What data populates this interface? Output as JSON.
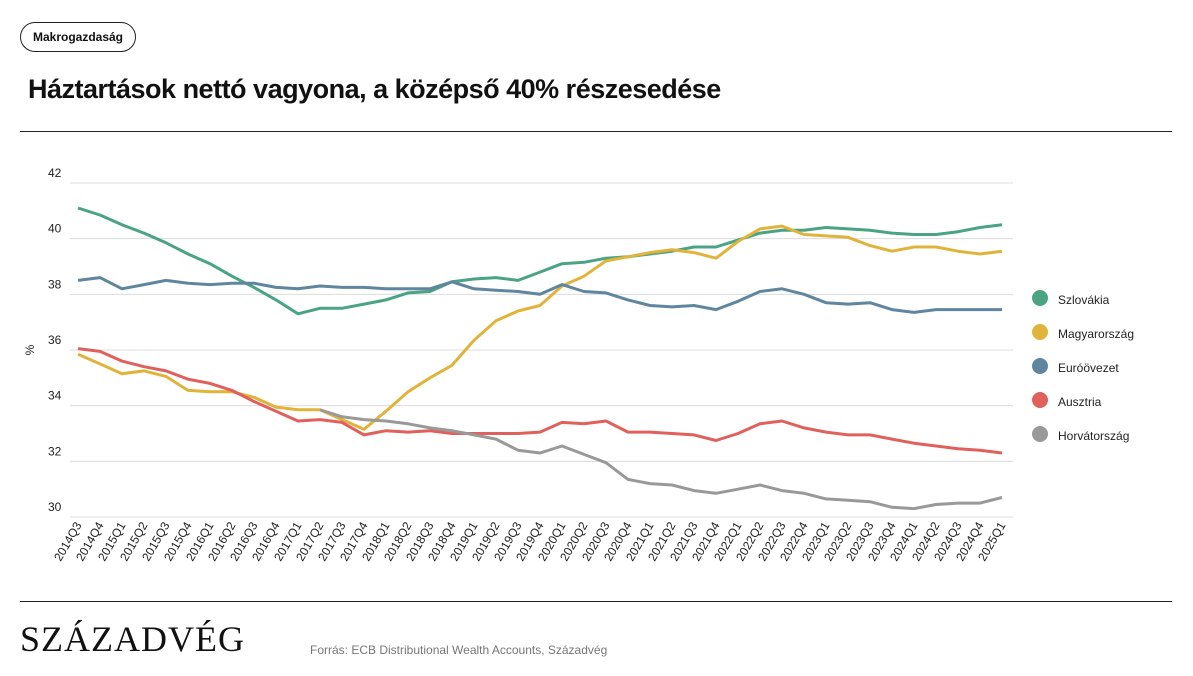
{
  "header": {
    "tag": "Makrogazdaság"
  },
  "footer": {
    "logo": "SZÁZADVÉG",
    "source": "Forrás: ECB Distributional Wealth Accounts, Századvég"
  },
  "chart_data": {
    "type": "line",
    "title": "Háztartások nettó vagyona, a középső 40% részesedése",
    "y_label": "%",
    "categories": [
      "2014Q3",
      "2014Q4",
      "2015Q1",
      "2015Q2",
      "2015Q3",
      "2015Q4",
      "2016Q1",
      "2016Q2",
      "2016Q3",
      "2016Q4",
      "2017Q1",
      "2017Q2",
      "2017Q3",
      "2017Q4",
      "2018Q1",
      "2018Q2",
      "2018Q3",
      "2018Q4",
      "2019Q1",
      "2019Q2",
      "2019Q3",
      "2019Q4",
      "2020Q1",
      "2020Q2",
      "2020Q3",
      "2020Q4",
      "2021Q1",
      "2021Q2",
      "2021Q3",
      "2021Q4",
      "2022Q1",
      "2022Q2",
      "2022Q3",
      "2022Q4",
      "2023Q1",
      "2023Q2",
      "2023Q3",
      "2023Q4",
      "2024Q1",
      "2024Q2",
      "2024Q3",
      "2024Q4",
      "2025Q1"
    ],
    "ylim": [
      30,
      42
    ],
    "yticks": [
      30,
      32,
      34,
      36,
      38,
      40,
      42
    ],
    "grid": true,
    "legend": "right",
    "series": [
      {
        "name": "Szlovákia",
        "color": "#4aa383",
        "values": [
          41.1,
          40.85,
          40.5,
          40.2,
          39.85,
          39.45,
          39.1,
          38.65,
          38.25,
          37.8,
          37.3,
          37.5,
          37.5,
          37.65,
          37.8,
          38.05,
          38.1,
          38.45,
          38.55,
          38.6,
          38.5,
          38.8,
          39.1,
          39.15,
          39.3,
          39.35,
          39.45,
          39.55,
          39.7,
          39.7,
          39.95,
          40.2,
          40.3,
          40.3,
          40.4,
          40.35,
          40.3,
          40.2,
          40.15,
          40.15,
          40.25,
          40.4,
          40.5
        ]
      },
      {
        "name": "Magyarország",
        "color": "#e0b43a",
        "values": [
          35.85,
          35.5,
          35.15,
          35.25,
          35.05,
          34.55,
          34.5,
          34.5,
          34.3,
          33.95,
          33.85,
          33.85,
          33.5,
          33.15,
          33.8,
          34.5,
          35.0,
          35.45,
          36.35,
          37.05,
          37.4,
          37.6,
          38.3,
          38.65,
          39.2,
          39.35,
          39.5,
          39.6,
          39.5,
          39.3,
          39.9,
          40.35,
          40.45,
          40.15,
          40.1,
          40.05,
          39.75,
          39.55,
          39.7,
          39.7,
          39.55,
          39.45,
          39.55
        ]
      },
      {
        "name": "Euróövezet",
        "color": "#5f869e",
        "values": [
          38.5,
          38.6,
          38.2,
          38.35,
          38.5,
          38.4,
          38.35,
          38.4,
          38.4,
          38.25,
          38.2,
          38.3,
          38.25,
          38.25,
          38.2,
          38.2,
          38.2,
          38.45,
          38.2,
          38.15,
          38.1,
          38.0,
          38.35,
          38.1,
          38.05,
          37.8,
          37.6,
          37.55,
          37.6,
          37.45,
          37.75,
          38.1,
          38.2,
          38.0,
          37.7,
          37.65,
          37.7,
          37.45,
          37.35,
          37.45,
          37.45,
          37.45,
          37.45
        ]
      },
      {
        "name": "Ausztria",
        "color": "#e0605c",
        "values": [
          36.05,
          35.95,
          35.6,
          35.4,
          35.25,
          34.95,
          34.8,
          34.55,
          34.15,
          33.8,
          33.45,
          33.5,
          33.4,
          32.95,
          33.1,
          33.05,
          33.1,
          33.0,
          33.0,
          33.0,
          33.0,
          33.05,
          33.4,
          33.35,
          33.45,
          33.05,
          33.05,
          33.0,
          32.95,
          32.75,
          33.0,
          33.35,
          33.45,
          33.2,
          33.05,
          32.95,
          32.95,
          32.8,
          32.65,
          32.55,
          32.45,
          32.4,
          32.3
        ]
      },
      {
        "name": "Horvátország",
        "color": "#999999",
        "values": [
          null,
          null,
          null,
          null,
          null,
          null,
          null,
          null,
          null,
          null,
          null,
          33.85,
          33.6,
          33.5,
          33.45,
          33.35,
          33.2,
          33.1,
          32.95,
          32.8,
          32.4,
          32.3,
          32.55,
          32.25,
          31.95,
          31.35,
          31.2,
          31.15,
          30.95,
          30.85,
          31.0,
          31.15,
          30.95,
          30.85,
          30.65,
          30.6,
          30.55,
          30.35,
          30.3,
          30.45,
          30.5,
          30.5,
          30.7
        ]
      }
    ]
  }
}
